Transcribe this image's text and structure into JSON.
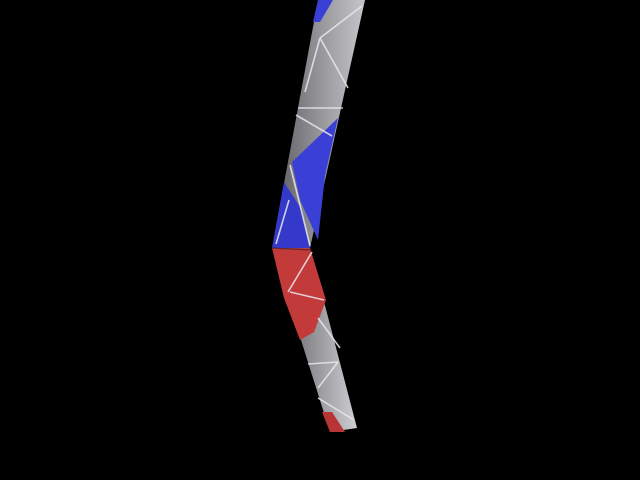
{
  "scene": {
    "background_color": "#000000",
    "subject": "folded-strip-mesh",
    "segment_upper": {
      "colors": {
        "blue": "#3a3fd6",
        "gray": "#8e8e92",
        "gray_light": "#b9b9bd",
        "edge": "#e8e8ee"
      }
    },
    "segment_lower": {
      "colors": {
        "red": "#c23a3a",
        "gray": "#8a8a8e",
        "gray_light": "#b4b4b8",
        "edge": "#e8e8ee"
      }
    }
  }
}
